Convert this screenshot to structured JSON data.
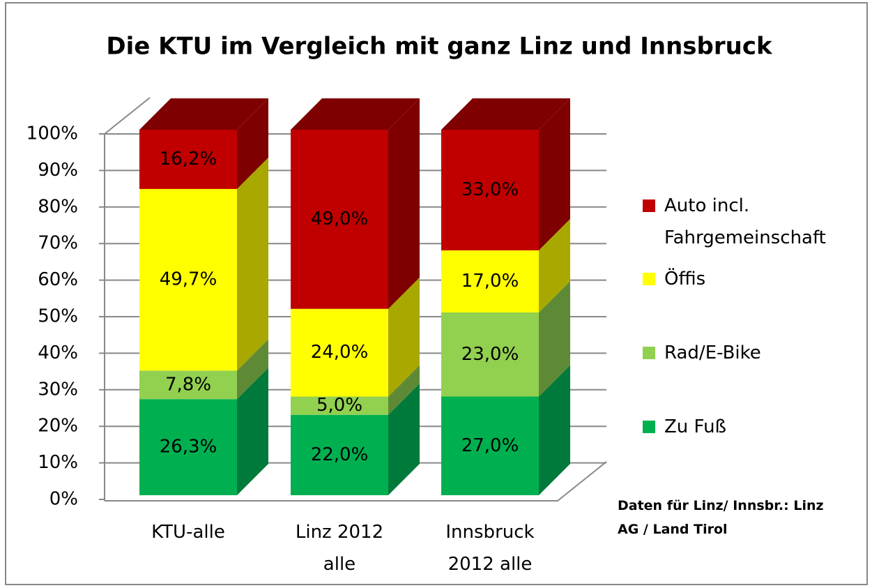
{
  "chart_data": {
    "type": "bar3d_stacked",
    "title": "Die KTU im Vergleich mit ganz Linz und Innsbruck",
    "categories": [
      "KTU-alle",
      "Linz 2012 alle",
      "Innsbruck 2012 alle"
    ],
    "series": [
      {
        "name": "Zu Fuß",
        "color": "#00b050",
        "side": "#007a3a",
        "values": [
          26.3,
          22,
          27
        ],
        "value_labels": [
          "26,3%",
          "22,0%",
          "27,0%"
        ]
      },
      {
        "name": "Rad/E-Bike",
        "color": "#92d050",
        "side": "#5f8a35",
        "values": [
          7.8,
          5,
          23
        ],
        "value_labels": [
          "7,8%",
          "5,0%",
          "23,0%"
        ]
      },
      {
        "name": "Öffis",
        "color": "#ffff00",
        "side": "#a8a800",
        "values": [
          49.7,
          24,
          17
        ],
        "value_labels": [
          "49,7%",
          "24,0%",
          "17,0%"
        ]
      },
      {
        "name": "Auto incl. Fahrgemeinschaft",
        "color": "#c00000",
        "side": "#7f0000",
        "values": [
          16.2,
          49,
          33
        ],
        "value_labels": [
          "16,2%",
          "49,0%",
          "33,0%"
        ]
      }
    ],
    "ylim": [
      0,
      100
    ],
    "yticks": [
      {
        "value": 0,
        "label": "0%"
      },
      {
        "value": 10,
        "label": "10%"
      },
      {
        "value": 20,
        "label": "20%"
      },
      {
        "value": 30,
        "label": "30%"
      },
      {
        "value": 40,
        "label": "40%"
      },
      {
        "value": 50,
        "label": "50%"
      },
      {
        "value": 60,
        "label": "60%"
      },
      {
        "value": 70,
        "label": "70%"
      },
      {
        "value": 80,
        "label": "80%"
      },
      {
        "value": 90,
        "label": "90%"
      },
      {
        "value": 100,
        "label": "100%"
      }
    ],
    "grid": true,
    "legend": "right",
    "annotation": "Daten für Linz/ Innsbr.: Linz AG / Land Tirol"
  }
}
